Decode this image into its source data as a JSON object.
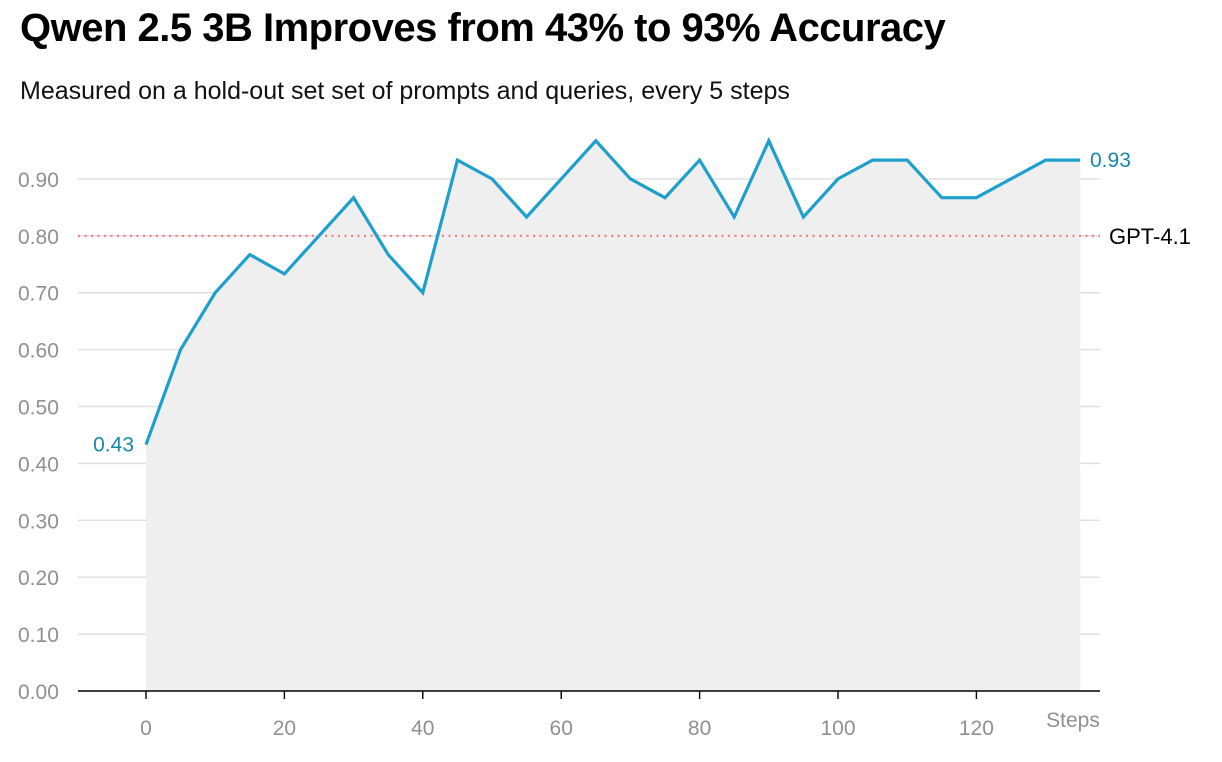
{
  "title": "Qwen 2.5 3B Improves from 43% to 93% Accuracy",
  "subtitle": "Measured on a hold-out set set of prompts and queries, every 5 steps",
  "colors": {
    "line": "#1f9fcc",
    "label": "#1a87aa",
    "area": "#efefef",
    "grid": "#e0e0e0",
    "ref": "#f27a7a",
    "axis": "#000000",
    "tick": "#909090"
  },
  "chart_data": {
    "type": "area",
    "xlabel": "Steps",
    "ylabel": "",
    "xlim": [
      -10,
      138
    ],
    "ylim": [
      0,
      0.98
    ],
    "grid": true,
    "x_ticks": [
      0,
      20,
      40,
      60,
      80,
      100,
      120
    ],
    "y_ticks": [
      0,
      0.1,
      0.2,
      0.3,
      0.4,
      0.5,
      0.6,
      0.7,
      0.8,
      0.9
    ],
    "y_tick_labels": [
      "0.00",
      "0.10",
      "0.20",
      "0.30",
      "0.40",
      "0.50",
      "0.60",
      "0.70",
      "0.80",
      "0.90"
    ],
    "x": [
      0,
      5,
      10,
      15,
      20,
      25,
      30,
      35,
      40,
      45,
      50,
      55,
      60,
      65,
      70,
      75,
      80,
      85,
      90,
      95,
      100,
      105,
      110,
      115,
      120,
      125,
      130,
      135
    ],
    "y": [
      0.433,
      0.6,
      0.7,
      0.767,
      0.733,
      0.8,
      0.867,
      0.767,
      0.7,
      0.933,
      0.9,
      0.833,
      0.9,
      0.967,
      0.9,
      0.867,
      0.933,
      0.833,
      0.967,
      0.833,
      0.9,
      0.933,
      0.933,
      0.867,
      0.867,
      0.9,
      0.933,
      0.933
    ],
    "start_label": "0.43",
    "end_label": "0.93",
    "reference_lines": [
      {
        "name": "GPT-4.1",
        "value": 0.8
      }
    ]
  }
}
